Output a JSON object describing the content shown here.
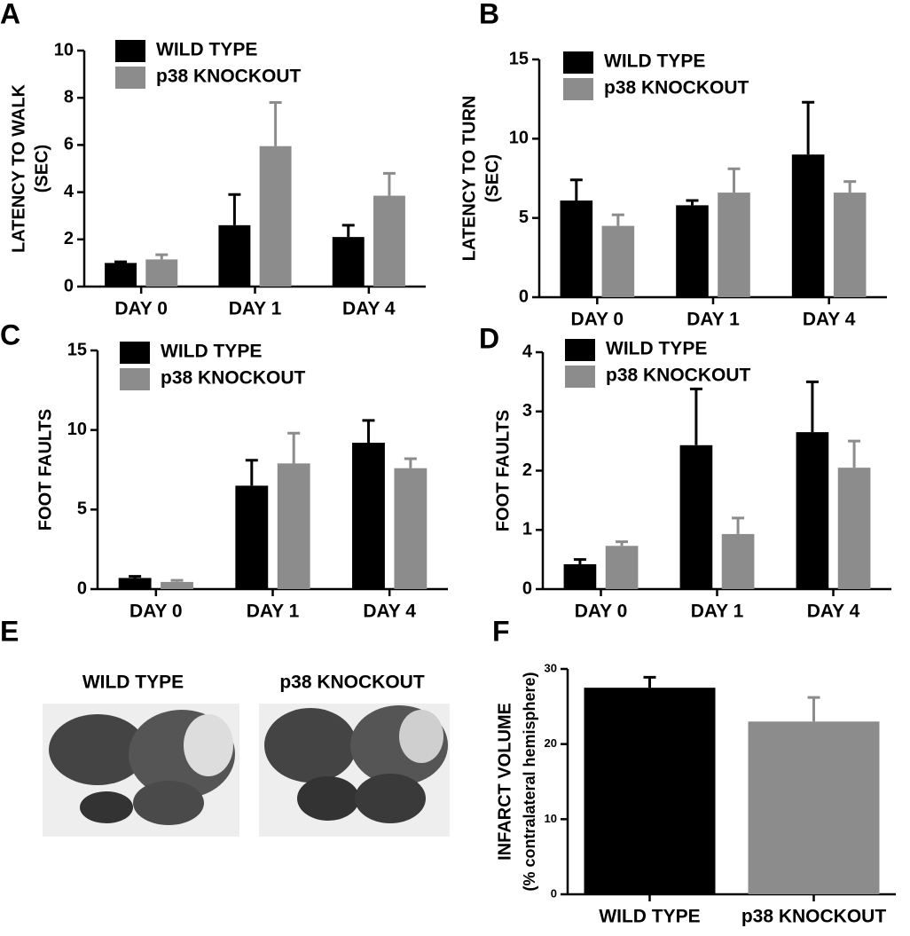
{
  "chart_data": [
    {
      "type": "bar",
      "panel": "A",
      "ylabel": [
        "LATENCY TO WALK",
        "(SEC)"
      ],
      "categories": [
        "DAY 0",
        "DAY 1",
        "DAY 4"
      ],
      "series": [
        {
          "name": "WILD TYPE",
          "color": "#000000",
          "values": [
            1.0,
            2.6,
            2.1
          ],
          "errors": [
            0.05,
            1.3,
            0.5
          ]
        },
        {
          "name": "p38 KNOCKOUT",
          "color": "#8c8c8c",
          "values": [
            1.15,
            5.95,
            3.85
          ],
          "errors": [
            0.2,
            1.85,
            0.95
          ]
        }
      ],
      "ylim": [
        0,
        10
      ],
      "yticks": [
        0,
        2,
        4,
        6,
        8,
        10
      ],
      "legend": "upper left"
    },
    {
      "type": "bar",
      "panel": "B",
      "ylabel": [
        "LATENCY TO TURN",
        "(SEC)"
      ],
      "categories": [
        "DAY 0",
        "DAY 1",
        "DAY 4"
      ],
      "series": [
        {
          "name": "WILD TYPE",
          "color": "#000000",
          "values": [
            6.1,
            5.8,
            9.0
          ],
          "errors": [
            1.3,
            0.3,
            3.3
          ]
        },
        {
          "name": "p38 KNOCKOUT",
          "color": "#8c8c8c",
          "values": [
            4.5,
            6.6,
            6.6
          ],
          "errors": [
            0.7,
            1.5,
            0.7
          ]
        }
      ],
      "ylim": [
        0,
        15
      ],
      "yticks": [
        0,
        5,
        10,
        15
      ],
      "legend": "upper left"
    },
    {
      "type": "bar",
      "panel": "C",
      "ylabel": [
        "FOOT FAULTS"
      ],
      "categories": [
        "DAY 0",
        "DAY 1",
        "DAY 4"
      ],
      "series": [
        {
          "name": "WILD TYPE",
          "color": "#000000",
          "values": [
            0.7,
            6.5,
            9.2
          ],
          "errors": [
            0.1,
            1.6,
            1.4
          ]
        },
        {
          "name": "p38 KNOCKOUT",
          "color": "#8c8c8c",
          "values": [
            0.45,
            7.9,
            7.6
          ],
          "errors": [
            0.1,
            1.9,
            0.6
          ]
        }
      ],
      "ylim": [
        0,
        15
      ],
      "yticks": [
        0,
        5,
        10,
        15
      ],
      "legend": "upper left"
    },
    {
      "type": "bar",
      "panel": "D",
      "ylabel": [
        "FOOT FAULTS"
      ],
      "categories": [
        "DAY 0",
        "DAY 1",
        "DAY 4"
      ],
      "series": [
        {
          "name": "WILD TYPE",
          "color": "#000000",
          "values": [
            0.42,
            2.43,
            2.65
          ],
          "errors": [
            0.08,
            0.95,
            0.85
          ]
        },
        {
          "name": "p38 KNOCKOUT",
          "color": "#8c8c8c",
          "values": [
            0.73,
            0.93,
            2.05
          ],
          "errors": [
            0.07,
            0.27,
            0.45
          ]
        }
      ],
      "ylim": [
        0,
        4
      ],
      "yticks": [
        0,
        1,
        2,
        3,
        4
      ],
      "legend": "upper left"
    },
    {
      "type": "bar",
      "panel": "F",
      "ylabel": [
        "INFARCT VOLUME",
        "(% contralateral hemisphere)"
      ],
      "categories": [
        "WILD TYPE",
        "p38 KNOCKOUT"
      ],
      "values": [
        27.5,
        23.0
      ],
      "errors": [
        1.4,
        3.2
      ],
      "colors": [
        "#000000",
        "#8c8c8c"
      ],
      "ylim": [
        0,
        30
      ],
      "yticks": [
        0,
        10,
        20,
        30
      ]
    }
  ],
  "image_panel": {
    "panel": "E",
    "labels": [
      "WILD TYPE",
      "p38 KNOCKOUT"
    ]
  }
}
